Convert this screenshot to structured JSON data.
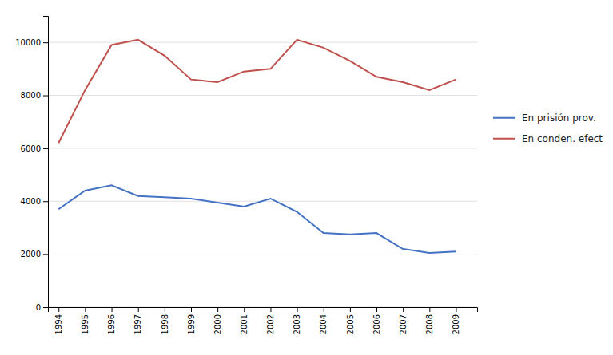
{
  "chart_data": {
    "type": "line",
    "x": [
      1994,
      1995,
      1996,
      1997,
      1998,
      1999,
      2000,
      2001,
      2002,
      2003,
      2004,
      2005,
      2006,
      2007,
      2008,
      2009
    ],
    "series": [
      {
        "name": "En prisión prov.",
        "color": "#4472C4",
        "values": [
          3700,
          4400,
          4600,
          4200,
          4150,
          4100,
          3950,
          3800,
          4100,
          3600,
          2800,
          2750,
          2800,
          2200,
          2050,
          2100
        ]
      },
      {
        "name": "En conden. efect",
        "color": "#C0504D",
        "values": [
          6200,
          8200,
          9900,
          10100,
          9500,
          8600,
          8500,
          8900,
          9000,
          10100,
          9800,
          9300,
          8700,
          8500,
          8200,
          8600
        ]
      }
    ],
    "xlim": [
      1993.6,
      2009.8
    ],
    "xticks": [
      1994,
      1995,
      1996,
      1997,
      1998,
      1999,
      2000,
      2001,
      2002,
      2003,
      2004,
      2005,
      2006,
      2007,
      2008,
      2009
    ],
    "ylim": [
      0,
      11000
    ],
    "yticks": [
      0,
      2000,
      4000,
      6000,
      8000,
      10000
    ],
    "grid": true,
    "legend": "right"
  }
}
